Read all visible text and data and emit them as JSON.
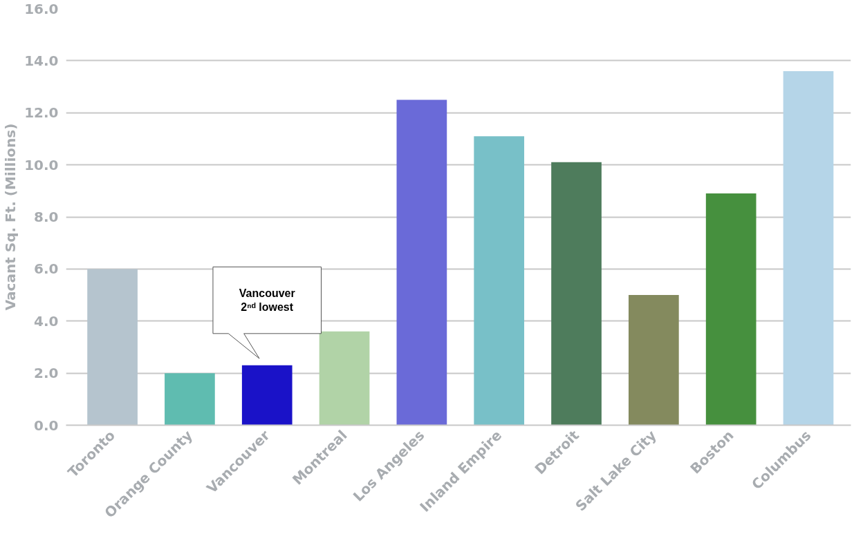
{
  "chart_data": {
    "type": "bar",
    "ylabel": "Vacant Sq. Ft. (Millions)",
    "categories": [
      "Toronto",
      "Orange County",
      "Vancouver",
      "Montreal",
      "Los Angeles",
      "Inland Empire",
      "Detroit",
      "Salt Lake City",
      "Boston",
      "Columbus"
    ],
    "values": [
      6.0,
      2.0,
      2.3,
      3.6,
      12.5,
      11.1,
      10.1,
      5.0,
      8.9,
      13.6
    ],
    "colors": [
      "#b5c4ce",
      "#5fbcb0",
      "#1a12c8",
      "#b1d3a7",
      "#6a6ad8",
      "#78c0c8",
      "#4e7c5c",
      "#848a5e",
      "#46903e",
      "#b5d5e8"
    ],
    "ylim": [
      0,
      16
    ],
    "yticks": [
      {
        "value": 0,
        "label": "0.0"
      },
      {
        "value": 2,
        "label": "2.0"
      },
      {
        "value": 4,
        "label": "4.0"
      },
      {
        "value": 6,
        "label": "6.0"
      },
      {
        "value": 8,
        "label": "8.0"
      },
      {
        "value": 10,
        "label": "10.0"
      },
      {
        "value": 12,
        "label": "12.0"
      },
      {
        "value": 14,
        "label": "14.0"
      },
      {
        "value": 16,
        "label": "16.0"
      }
    ],
    "grid": "y",
    "annotations": [
      "Vancouver\n2ⁿᵈ lowest"
    ]
  }
}
